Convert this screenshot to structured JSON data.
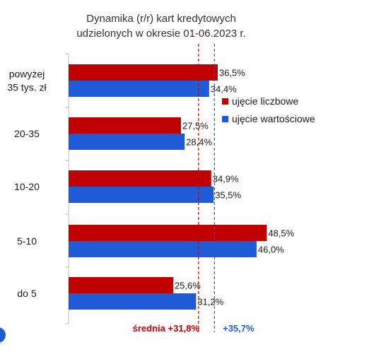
{
  "chart_data": {
    "type": "bar",
    "orientation": "horizontal",
    "title": "Dynamika (r/r) kart kredytowych udzielonych w okresie 01-06.2023 r.",
    "title_lines": [
      "Dynamika (r/r) kart kredytowych",
      "udzielonych w okresie 01-06.2023 r."
    ],
    "categories": [
      "powyżej 35 tys. zł",
      "20-35",
      "10-20",
      "5-10",
      "do 5"
    ],
    "category_lines": [
      [
        "powyżej",
        "35 tys. zł"
      ],
      [
        "20-35"
      ],
      [
        "10-20"
      ],
      [
        "5-10"
      ],
      [
        "do 5"
      ]
    ],
    "series": [
      {
        "name": "ujęcie liczbowe",
        "color": "#C00000",
        "values": [
          36.5,
          27.5,
          34.9,
          48.5,
          25.6
        ],
        "labels": [
          "36,5%",
          "27,5%",
          "34,9%",
          "48,5%",
          "25,6%"
        ]
      },
      {
        "name": "ujęcie wartościowe",
        "color": "#1F5BD6",
        "values": [
          34.4,
          28.4,
          35.5,
          46.0,
          31.2
        ],
        "labels": [
          "34,4%",
          "28,4%",
          "35,5%",
          "46,0%",
          "31,2%"
        ]
      }
    ],
    "reference_lines": [
      {
        "value": 31.8,
        "label": "średnia +31,8%",
        "color": "#C00000"
      },
      {
        "value": 35.7,
        "label": "+35,7%",
        "color": "#1F5BD6"
      }
    ],
    "xlim": [
      0,
      60
    ],
    "grid": false,
    "legend_position": "right"
  }
}
